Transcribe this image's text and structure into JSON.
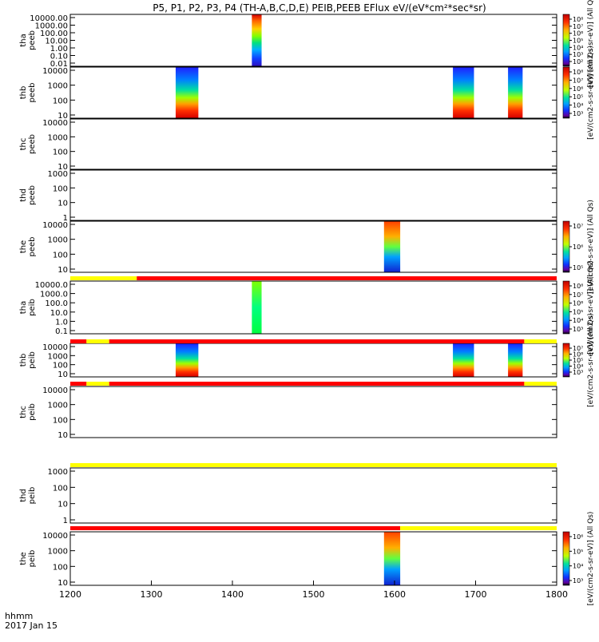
{
  "title": "P5, P1, P2, P3, P4 (TH-A,B,C,D,E) PEIB,PEEB EFlux eV/(eV*cm²*sec*sr)",
  "footer": {
    "xunit": "hhmm",
    "date": "2017 Jan 15"
  },
  "colorbar_labels": {
    "eflux_all_qs": "[eV/(cm2-s-sr-eV)] (All Qs)"
  },
  "chart_data": {
    "type": "heatmap",
    "xlim": [
      1200,
      1800
    ],
    "xticks": [
      "1200",
      "1300",
      "1400",
      "1500",
      "1600",
      "1700",
      "1800"
    ],
    "panels": [
      {
        "label_probe": "tha",
        "label_inst": "peeb",
        "yticks": [
          "10000.00",
          "1000.00",
          "100.00",
          "10.00",
          "1.00",
          "0.10",
          "0.01"
        ],
        "ylog": true,
        "bursts": [
          [
            1424,
            1436
          ]
        ],
        "colorbar": [
          "10⁸",
          "10⁷",
          "10⁶",
          "10⁵",
          "10⁴",
          "10³",
          "10²"
        ]
      },
      {
        "label_probe": "thb",
        "label_inst": "peeb",
        "yticks": [
          "10000",
          "1000",
          "100",
          "10"
        ],
        "ylog": true,
        "bursts": [
          [
            1330,
            1358
          ],
          [
            1672,
            1698
          ],
          [
            1740,
            1758
          ]
        ],
        "colorbar": [
          "10⁸",
          "10⁷",
          "10⁶",
          "10⁵",
          "10⁴",
          "10³"
        ]
      },
      {
        "label_probe": "thc",
        "label_inst": "peeb",
        "yticks": [
          "10000",
          "1000",
          "100",
          "10"
        ],
        "ylog": true,
        "bursts": [],
        "colorbar": []
      },
      {
        "label_probe": "thd",
        "label_inst": "peeb",
        "yticks": [
          "1000",
          "100",
          "10",
          "1"
        ],
        "ylog": true,
        "bursts": [],
        "colorbar": []
      },
      {
        "label_probe": "the",
        "label_inst": "peeb",
        "yticks": [
          "10000",
          "1000",
          "100",
          "10"
        ],
        "ylog": true,
        "bursts": [
          [
            1587,
            1607
          ]
        ],
        "colorbar": [
          "10⁷",
          "10⁶",
          "10⁵"
        ]
      },
      {
        "label_probe": "tha",
        "label_inst": "peib",
        "yticks": [
          "10000.0",
          "1000.0",
          "100.0",
          "10.0",
          "1.0",
          "0.1"
        ],
        "ylog": true,
        "bursts": [
          [
            1424,
            1436
          ]
        ],
        "colorbar": [
          "10⁸",
          "10⁷",
          "10⁶",
          "10⁵",
          "10⁴",
          "10³"
        ]
      },
      {
        "label_probe": "thb",
        "label_inst": "peib",
        "yticks": [
          "10000",
          "1000",
          "100",
          "10"
        ],
        "ylog": true,
        "bursts": [
          [
            1330,
            1358
          ],
          [
            1672,
            1698
          ],
          [
            1740,
            1758
          ]
        ],
        "colorbar": [
          "10⁷",
          "10⁶",
          "10⁵",
          "10⁴",
          "10³"
        ]
      },
      {
        "label_probe": "thc",
        "label_inst": "peib",
        "yticks": [
          "10000",
          "1000",
          "100",
          "10"
        ],
        "ylog": true,
        "bursts": [],
        "colorbar": []
      },
      {
        "label_probe": "thd",
        "label_inst": "peib",
        "yticks": [
          "1000",
          "100",
          "10",
          "1"
        ],
        "ylog": true,
        "bursts": [],
        "colorbar": []
      },
      {
        "label_probe": "the",
        "label_inst": "peib",
        "yticks": [
          "10000",
          "1000",
          "100",
          "10"
        ],
        "ylog": true,
        "bursts": [
          [
            1587,
            1607
          ]
        ],
        "colorbar": [
          "10⁶",
          "10⁵",
          "10⁴",
          "10³"
        ]
      }
    ],
    "mode_bars": [
      {
        "segments": [
          [
            1200,
            1282,
            "#ffff00"
          ],
          [
            1282,
            1800,
            "#ff0000"
          ]
        ]
      },
      {
        "segments": [
          [
            1200,
            1220,
            "#ff0000"
          ],
          [
            1220,
            1248,
            "#ffff00"
          ],
          [
            1248,
            1760,
            "#ff0000"
          ],
          [
            1760,
            1800,
            "#ffff00"
          ]
        ]
      },
      {
        "segments": [
          [
            1200,
            1220,
            "#ff0000"
          ],
          [
            1220,
            1248,
            "#ffff00"
          ],
          [
            1248,
            1760,
            "#ff0000"
          ],
          [
            1760,
            1800,
            "#ffff00"
          ]
        ]
      },
      {
        "segments": [
          [
            1200,
            1800,
            "#ffff00"
          ]
        ]
      },
      {
        "segments": [
          [
            1200,
            1607,
            "#ff0000"
          ],
          [
            1607,
            1800,
            "#ffff00"
          ]
        ]
      }
    ]
  }
}
